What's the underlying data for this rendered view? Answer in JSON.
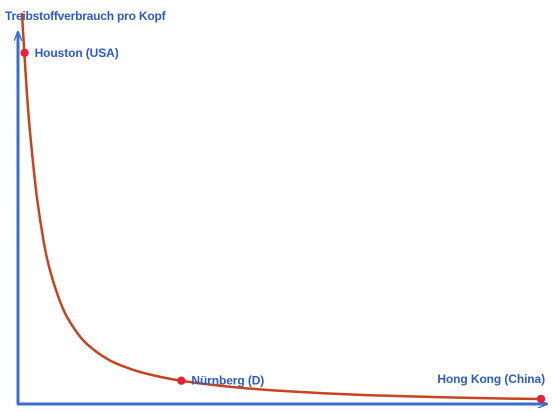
{
  "colors": {
    "axis": "#3a6fcf",
    "curve": "#c8431f",
    "marker": "#e8203a",
    "label": "#2c5bc4"
  },
  "chart_data": {
    "type": "line",
    "title": "",
    "ylabel": "Treibstoffverbrauch pro Kopf",
    "xlabel": "",
    "grid": false,
    "legend": "none",
    "series": [
      {
        "x": [
          0.1,
          0.2,
          0.3,
          0.5,
          0.75,
          1.0,
          1.5,
          2.0,
          3.0,
          4.0,
          5.0,
          6.0,
          8.0,
          10.0,
          13.0,
          16.0,
          20.0,
          25.0,
          30.0,
          40.0,
          50.0,
          60.0,
          70.0,
          80.0,
          90.0,
          100.0
        ],
        "y": [
          1.0,
          0.8,
          0.68,
          0.53,
          0.42,
          0.35,
          0.27,
          0.22,
          0.165,
          0.135,
          0.115,
          0.101,
          0.083,
          0.071,
          0.059,
          0.051,
          0.043,
          0.036,
          0.031,
          0.024,
          0.019,
          0.016,
          0.0135,
          0.0115,
          0.01,
          0.009
        ]
      }
    ],
    "points": [
      {
        "label": "Houston (USA)",
        "x": 0.15,
        "y": 0.9
      },
      {
        "label": "Nürnberg (D)",
        "x": 14.0,
        "y": 0.056
      },
      {
        "label": "Hong Kong (China)",
        "x": 100.0,
        "y": 0.009
      }
    ]
  }
}
